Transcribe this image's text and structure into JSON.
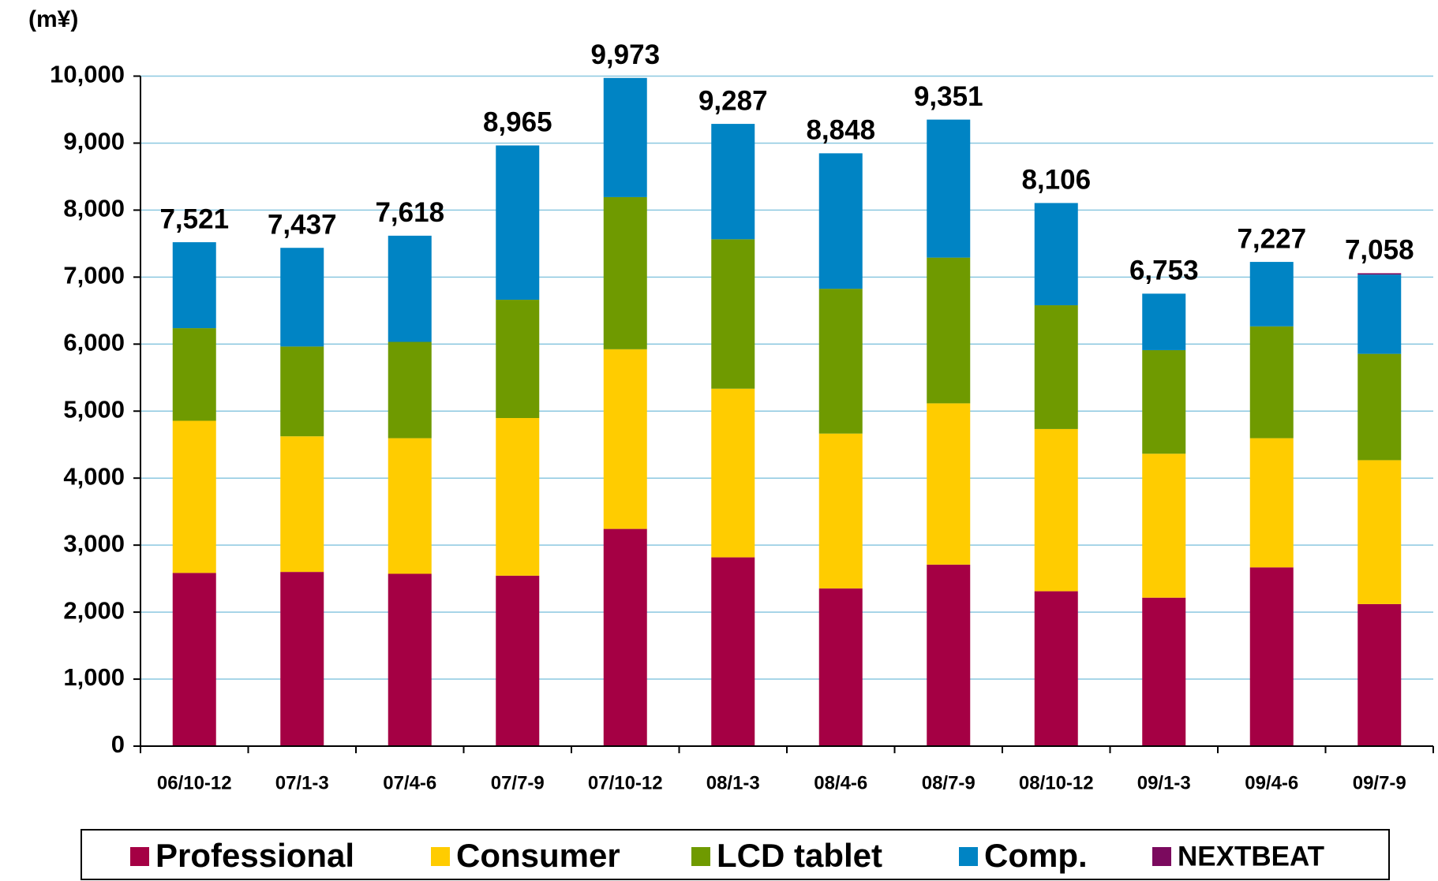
{
  "chart_data": {
    "type": "stacked_bar",
    "unit_label": "(m¥)",
    "categories": [
      "06/10-12",
      "07/1-3",
      "07/4-6",
      "07/7-9",
      "07/10-12",
      "08/1-3",
      "08/4-6",
      "08/7-9",
      "08/10-12",
      "09/1-3",
      "09/4-6",
      "09/7-9"
    ],
    "series": [
      {
        "name": "Professional",
        "color": "#a50044",
        "values": [
          2585,
          2600,
          2572,
          2544,
          3242,
          2818,
          2353,
          2709,
          2312,
          2216,
          2668,
          2120
        ]
      },
      {
        "name": "Consumer",
        "color": "#ffcc00",
        "values": [
          2271,
          2024,
          2024,
          2353,
          2681,
          2517,
          2312,
          2407,
          2421,
          2148,
          1928,
          2148
        ]
      },
      {
        "name": "LCD tablet",
        "color": "#6f9a00",
        "values": [
          1382,
          1340,
          1437,
          1765,
          2271,
          2230,
          2161,
          2175,
          1847,
          1546,
          1669,
          1587
        ]
      },
      {
        "name": "Comp.",
        "color": "#0084c4",
        "values": [
          1283,
          1473,
          1585,
          2303,
          1779,
          1722,
          2022,
          2060,
          1526,
          843,
          962,
          1183
        ]
      },
      {
        "name": "NEXTBEAT",
        "color": "#7b0a5e",
        "values": [
          0,
          0,
          0,
          0,
          0,
          0,
          0,
          0,
          0,
          0,
          0,
          20
        ]
      }
    ],
    "totals": {
      "values": [
        7521,
        7437,
        7618,
        8965,
        9973,
        9287,
        8848,
        9351,
        8106,
        6753,
        7227,
        7058
      ],
      "value_labels": [
        "7,521",
        "7,437",
        "7,618",
        "8,965",
        "9,973",
        "9,287",
        "8,848",
        "9,351",
        "8,106",
        "6,753",
        "7,227",
        "7,058"
      ]
    },
    "ylim": [
      0,
      10000
    ],
    "yticks": [
      0,
      {
        "value": 1000,
        "label": "1,000"
      },
      {
        "value": 2000,
        "label": "2,000"
      },
      {
        "value": 3000,
        "label": "3,000"
      },
      {
        "value": 4000,
        "label": "4,000"
      },
      {
        "value": 5000,
        "label": "5,000"
      },
      {
        "value": 6000,
        "label": "6,000"
      },
      {
        "value": 7000,
        "label": "7,000"
      },
      {
        "value": 8000,
        "label": "8,000"
      },
      {
        "value": 9000,
        "label": "9,000"
      },
      {
        "value": 10000,
        "label": "10,000"
      }
    ],
    "grid": true,
    "legend": "bottom"
  }
}
